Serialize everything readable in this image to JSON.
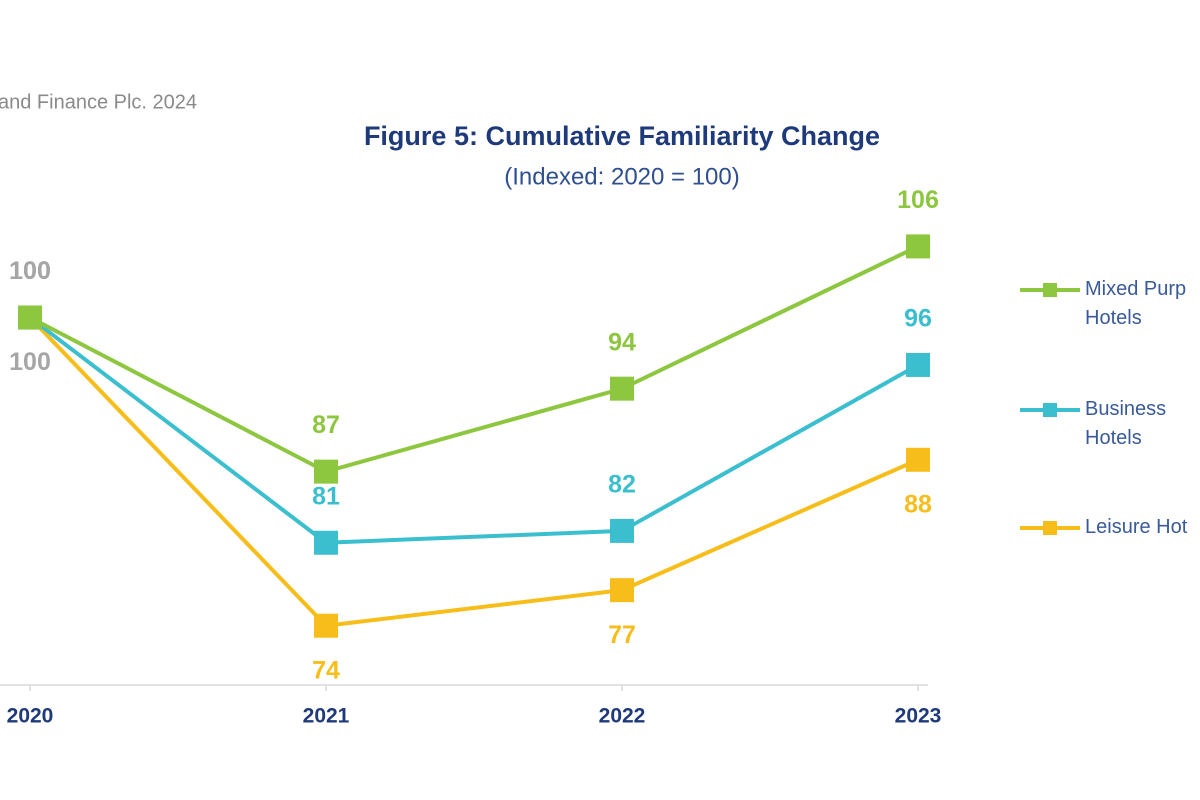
{
  "chart_data": {
    "type": "line",
    "source": "and Finance Plc. 2024",
    "title": "Figure 5: Cumulative Familiarity Change",
    "subtitle": "(Indexed: 2020 = 100)",
    "categories": [
      "2020",
      "2021",
      "2022",
      "2023"
    ],
    "series": [
      {
        "name": "Mixed Purp Hotels",
        "color": "#8dc63f",
        "label_position": "above",
        "values": [
          100,
          87,
          94,
          106
        ]
      },
      {
        "name": "Business Hotels",
        "color": "#3bbfcf",
        "label_position": "above",
        "values": [
          100,
          81,
          82,
          96
        ]
      },
      {
        "name": "Leisure Hot",
        "color": "#f7bd1a",
        "label_position": "below",
        "values": [
          100,
          74,
          77,
          88
        ]
      }
    ],
    "ylim": [
      69,
      110
    ],
    "legend": "right"
  }
}
